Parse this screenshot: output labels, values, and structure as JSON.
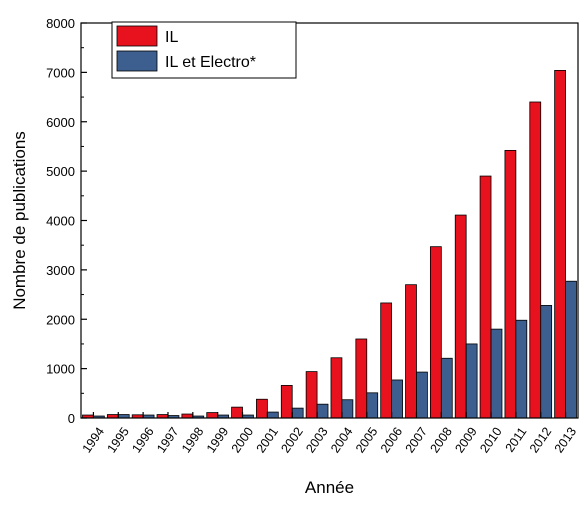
{
  "chart_data": {
    "type": "bar",
    "title": "",
    "xlabel": "Année",
    "ylabel": "Nombre de publications",
    "ylim": [
      0,
      8000
    ],
    "yticks": [
      0,
      1000,
      2000,
      3000,
      4000,
      5000,
      6000,
      7000,
      8000
    ],
    "grid": false,
    "legend_position": "top-left",
    "categories": [
      "1994",
      "1995",
      "1996",
      "1997",
      "1998",
      "1999",
      "2000",
      "2001",
      "2002",
      "2003",
      "2004",
      "2005",
      "2006",
      "2007",
      "2008",
      "2009",
      "2010",
      "2011",
      "2012",
      "2013"
    ],
    "series": [
      {
        "name": "IL",
        "color": "#e8121e",
        "values": [
          60,
          70,
          65,
          70,
          80,
          110,
          220,
          380,
          660,
          940,
          1220,
          1600,
          2330,
          2700,
          3470,
          4110,
          4900,
          5420,
          6400,
          7040
        ]
      },
      {
        "name": "IL et Electro*",
        "color": "#3d5f8f",
        "values": [
          40,
          70,
          60,
          50,
          40,
          60,
          60,
          120,
          200,
          280,
          370,
          510,
          770,
          930,
          1210,
          1500,
          1800,
          1980,
          2280,
          2770
        ]
      }
    ]
  }
}
